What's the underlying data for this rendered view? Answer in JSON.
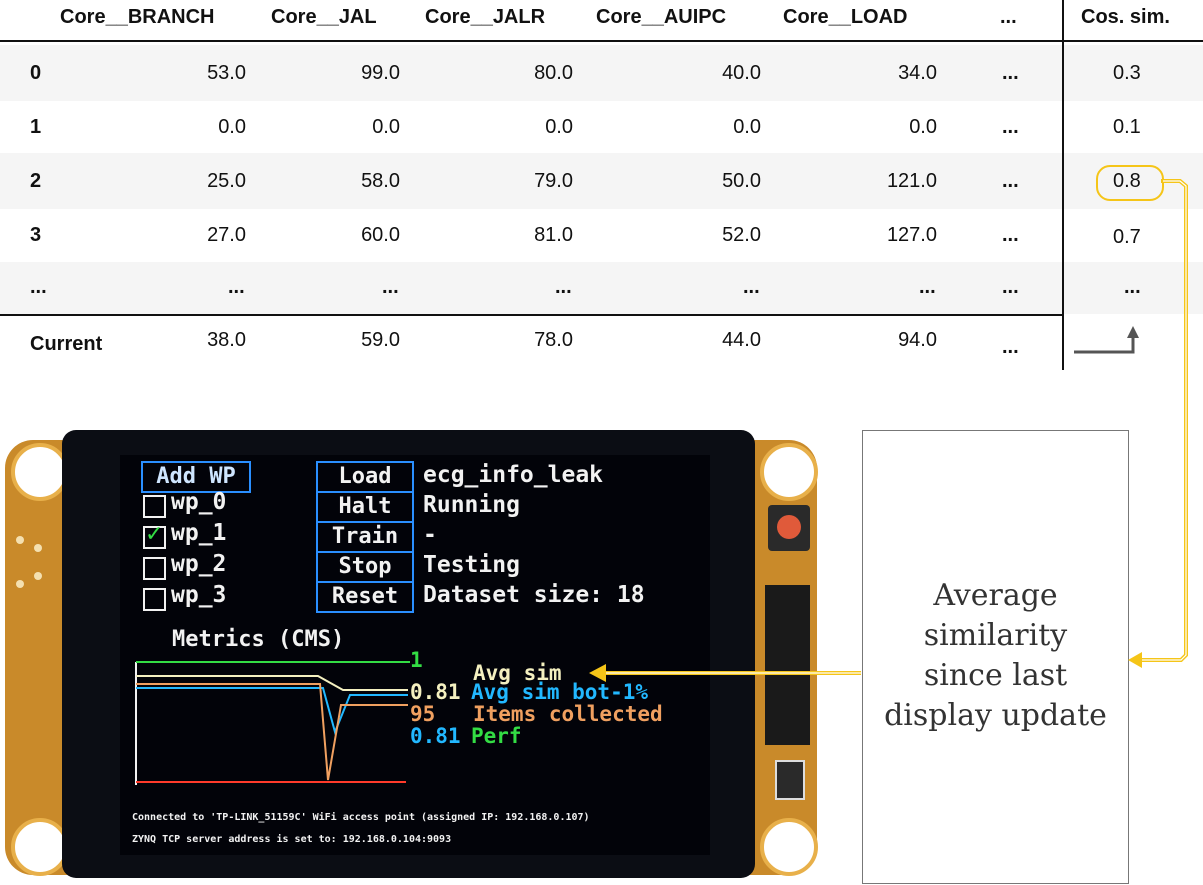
{
  "table": {
    "columns": [
      "Core__BRANCH",
      "Core__JAL",
      "Core__JALR",
      "Core__AUIPC",
      "Core__LOAD",
      "...",
      "Cos. sim."
    ],
    "rows": [
      {
        "index": "0",
        "values": [
          "53.0",
          "99.0",
          "80.0",
          "40.0",
          "34.0",
          "..."
        ],
        "cos": "0.3"
      },
      {
        "index": "1",
        "values": [
          "0.0",
          "0.0",
          "0.0",
          "0.0",
          "0.0",
          "..."
        ],
        "cos": "0.1"
      },
      {
        "index": "2",
        "values": [
          "25.0",
          "58.0",
          "79.0",
          "50.0",
          "121.0",
          "..."
        ],
        "cos": "0.8"
      },
      {
        "index": "3",
        "values": [
          "27.0",
          "60.0",
          "81.0",
          "52.0",
          "127.0",
          "..."
        ],
        "cos": "0.7"
      },
      {
        "index": "...",
        "values": [
          "...",
          "...",
          "...",
          "...",
          "...",
          "..."
        ],
        "cos": "..."
      }
    ],
    "current": {
      "label": "Current",
      "values": [
        "38.0",
        "59.0",
        "78.0",
        "44.0",
        "94.0",
        "..."
      ]
    }
  },
  "device": {
    "buttons": {
      "add_wp": "Add WP",
      "load": "Load",
      "halt": "Halt",
      "train": "Train",
      "stop": "Stop",
      "reset": "Reset"
    },
    "workloads": [
      {
        "label": "wp_0",
        "checked": false
      },
      {
        "label": "wp_1",
        "checked": true
      },
      {
        "label": "wp_2",
        "checked": false
      },
      {
        "label": "wp_3",
        "checked": false
      }
    ],
    "status": {
      "load": "ecg_info_leak",
      "halt": "Running",
      "train": "-",
      "stop": "Testing",
      "reset": "Dataset size: 18"
    },
    "metrics_title": "Metrics (CMS)",
    "chart_labels": {
      "top": "1",
      "avg_sim": "Avg sim",
      "bot_val": "0.81",
      "bot_label": "Avg sim bot-1%",
      "items_val": "95",
      "items_label": "Items collected",
      "perf_val": "0.81",
      "perf_label": "Perf"
    },
    "footer": [
      "Connected to 'TP-LINK_51159C' WiFi access point (assigned IP: 192.168.0.107)",
      "ZYNQ TCP server address is set to: 192.168.0.104:9093"
    ]
  },
  "annotation": {
    "lines": [
      "Average",
      "similarity",
      "since last",
      "display update"
    ]
  },
  "colors": {
    "highlight": "#f5c518",
    "lcd_bg": "#020309",
    "pcb": "#c98a2a",
    "button_border": "#2a8fff",
    "green": "#33dd44",
    "cyan": "#22b8ff",
    "orange": "#f0a060",
    "red": "#ff3a2a",
    "yellow_white": "#f4f0c0"
  }
}
